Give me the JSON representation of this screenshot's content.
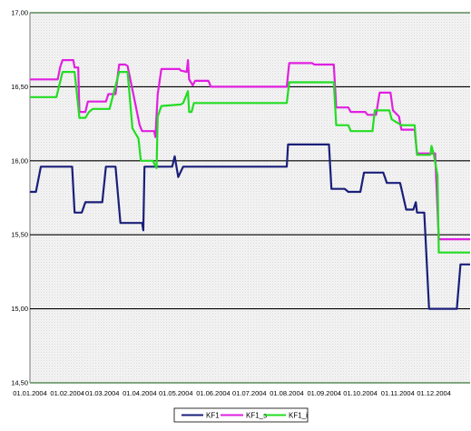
{
  "chart_data": {
    "type": "line",
    "title": "",
    "xlabel": "",
    "ylabel": "",
    "ylim": [
      14.5,
      17.0
    ],
    "y_ticks": [
      "17,00",
      "16,50",
      "16,00",
      "15,50",
      "15,00",
      "14,50"
    ],
    "x_ticks": [
      "01.01.2004",
      "01.02.2004",
      "01.03.2004",
      "01.04.2004",
      "01.05.2004",
      "01.06.2004",
      "01.07.2004",
      "01.08.2004",
      "01.09.2004",
      "01.10.2004",
      "01.11.2004",
      "01.12.2004"
    ],
    "grid": "horizontal major lines at 16,50 / 16,00 / 15,50 / 15,00",
    "legend_position": "bottom-center",
    "series": [
      {
        "name": "KF1",
        "color": "#1a1f7a",
        "points": [
          [
            "01.01.2004",
            15.79
          ],
          [
            "06.01.2004",
            15.79
          ],
          [
            "10.01.2004",
            15.96
          ],
          [
            "26.01.2004",
            15.96
          ],
          [
            "05.02.2004",
            15.96
          ],
          [
            "07.02.2004",
            15.65
          ],
          [
            "13.02.2004",
            15.65
          ],
          [
            "16.02.2004",
            15.72
          ],
          [
            "01.03.2004",
            15.72
          ],
          [
            "04.03.2004",
            15.96
          ],
          [
            "12.03.2004",
            15.96
          ],
          [
            "16.03.2004",
            15.58
          ],
          [
            "03.04.2004",
            15.58
          ],
          [
            "04.04.2004",
            15.53
          ],
          [
            "05.04.2004",
            15.96
          ],
          [
            "24.04.2004",
            15.96
          ],
          [
            "28.04.2004",
            15.96
          ],
          [
            "30.04.2004",
            16.03
          ],
          [
            "03.05.2004",
            15.89
          ],
          [
            "07.05.2004",
            15.96
          ],
          [
            "01.06.2004",
            15.96
          ],
          [
            "01.08.2004",
            15.96
          ],
          [
            "02.08.2004",
            16.11
          ],
          [
            "05.09.2004",
            16.11
          ],
          [
            "07.09.2004",
            15.81
          ],
          [
            "18.09.2004",
            15.81
          ],
          [
            "21.09.2004",
            15.79
          ],
          [
            "01.10.2004",
            15.79
          ],
          [
            "04.10.2004",
            15.92
          ],
          [
            "20.10.2004",
            15.92
          ],
          [
            "23.10.2004",
            15.85
          ],
          [
            "03.11.2004",
            15.85
          ],
          [
            "08.11.2004",
            15.67
          ],
          [
            "14.11.2004",
            15.67
          ],
          [
            "16.11.2004",
            15.72
          ],
          [
            "17.11.2004",
            15.65
          ],
          [
            "23.11.2004",
            15.65
          ],
          [
            "27.11.2004",
            15.0
          ],
          [
            "20.12.2004",
            15.0
          ],
          [
            "23.12.2004",
            15.3
          ],
          [
            "31.12.2004",
            15.3
          ]
        ]
      },
      {
        "name": "KF1_s",
        "color": "#e020e0",
        "points": [
          [
            "01.01.2004",
            16.55
          ],
          [
            "24.01.2004",
            16.55
          ],
          [
            "26.01.2004",
            16.63
          ],
          [
            "28.01.2004",
            16.68
          ],
          [
            "06.02.2004",
            16.68
          ],
          [
            "07.02.2004",
            16.63
          ],
          [
            "10.02.2004",
            16.63
          ],
          [
            "11.02.2004",
            16.33
          ],
          [
            "16.02.2004",
            16.33
          ],
          [
            "18.02.2004",
            16.4
          ],
          [
            "04.03.2004",
            16.4
          ],
          [
            "06.03.2004",
            16.45
          ],
          [
            "12.03.2004",
            16.45
          ],
          [
            "15.03.2004",
            16.65
          ],
          [
            "20.03.2004",
            16.65
          ],
          [
            "22.03.2004",
            16.64
          ],
          [
            "01.04.2004",
            16.24
          ],
          [
            "03.04.2004",
            16.2
          ],
          [
            "13.04.2004",
            16.2
          ],
          [
            "14.04.2004",
            16.16
          ],
          [
            "16.04.2004",
            16.45
          ],
          [
            "19.04.2004",
            16.62
          ],
          [
            "04.05.2004",
            16.62
          ],
          [
            "05.05.2004",
            16.61
          ],
          [
            "10.05.2004",
            16.6
          ],
          [
            "11.05.2004",
            16.68
          ],
          [
            "12.05.2004",
            16.55
          ],
          [
            "15.05.2004",
            16.51
          ],
          [
            "17.05.2004",
            16.54
          ],
          [
            "28.05.2004",
            16.54
          ],
          [
            "30.05.2004",
            16.5
          ],
          [
            "01.07.2004",
            16.5
          ],
          [
            "01.08.2004",
            16.5
          ],
          [
            "03.08.2004",
            16.66
          ],
          [
            "22.08.2004",
            16.66
          ],
          [
            "24.08.2004",
            16.65
          ],
          [
            "09.09.2004",
            16.65
          ],
          [
            "11.09.2004",
            16.36
          ],
          [
            "21.09.2004",
            16.36
          ],
          [
            "23.09.2004",
            16.33
          ],
          [
            "05.10.2004",
            16.33
          ],
          [
            "07.10.2004",
            16.31
          ],
          [
            "14.10.2004",
            16.31
          ],
          [
            "17.10.2004",
            16.46
          ],
          [
            "26.10.2004",
            16.46
          ],
          [
            "28.10.2004",
            16.34
          ],
          [
            "02.11.2004",
            16.3
          ],
          [
            "04.11.2004",
            16.21
          ],
          [
            "15.11.2004",
            16.21
          ],
          [
            "17.11.2004",
            16.05
          ],
          [
            "02.12.2004",
            16.05
          ],
          [
            "05.12.2004",
            15.47
          ],
          [
            "31.12.2004",
            15.47
          ]
        ]
      },
      {
        "name": "KF1_i",
        "color": "#22dd22",
        "points": [
          [
            "01.01.2004",
            16.43
          ],
          [
            "23.01.2004",
            16.43
          ],
          [
            "28.01.2004",
            16.6
          ],
          [
            "05.02.2004",
            16.6
          ],
          [
            "07.02.2004",
            16.6
          ],
          [
            "11.02.2004",
            16.29
          ],
          [
            "16.02.2004",
            16.29
          ],
          [
            "19.02.2004",
            16.33
          ],
          [
            "22.02.2004",
            16.35
          ],
          [
            "07.03.2004",
            16.35
          ],
          [
            "15.03.2004",
            16.6
          ],
          [
            "22.03.2004",
            16.6
          ],
          [
            "26.03.2004",
            16.22
          ],
          [
            "31.03.2004",
            16.15
          ],
          [
            "02.04.2004",
            16.0
          ],
          [
            "12.04.2004",
            16.0
          ],
          [
            "15.04.2004",
            15.95
          ],
          [
            "16.04.2004",
            16.3
          ],
          [
            "19.04.2004",
            16.37
          ],
          [
            "05.05.2004",
            16.38
          ],
          [
            "07.05.2004",
            16.39
          ],
          [
            "11.05.2004",
            16.47
          ],
          [
            "12.05.2004",
            16.33
          ],
          [
            "14.05.2004",
            16.33
          ],
          [
            "16.05.2004",
            16.39
          ],
          [
            "01.07.2004",
            16.39
          ],
          [
            "01.08.2004",
            16.39
          ],
          [
            "03.08.2004",
            16.53
          ],
          [
            "09.09.2004",
            16.53
          ],
          [
            "11.09.2004",
            16.24
          ],
          [
            "21.09.2004",
            16.24
          ],
          [
            "23.09.2004",
            16.2
          ],
          [
            "11.10.2004",
            16.2
          ],
          [
            "13.10.2004",
            16.34
          ],
          [
            "25.10.2004",
            16.34
          ],
          [
            "27.10.2004",
            16.28
          ],
          [
            "04.11.2004",
            16.24
          ],
          [
            "15.11.2004",
            16.24
          ],
          [
            "17.11.2004",
            16.04
          ],
          [
            "28.11.2004",
            16.04
          ],
          [
            "29.11.2004",
            16.1
          ],
          [
            "01.12.2004",
            16.04
          ],
          [
            "04.12.2004",
            15.9
          ],
          [
            "05.12.2004",
            15.38
          ],
          [
            "31.12.2004",
            15.38
          ]
        ]
      }
    ]
  }
}
